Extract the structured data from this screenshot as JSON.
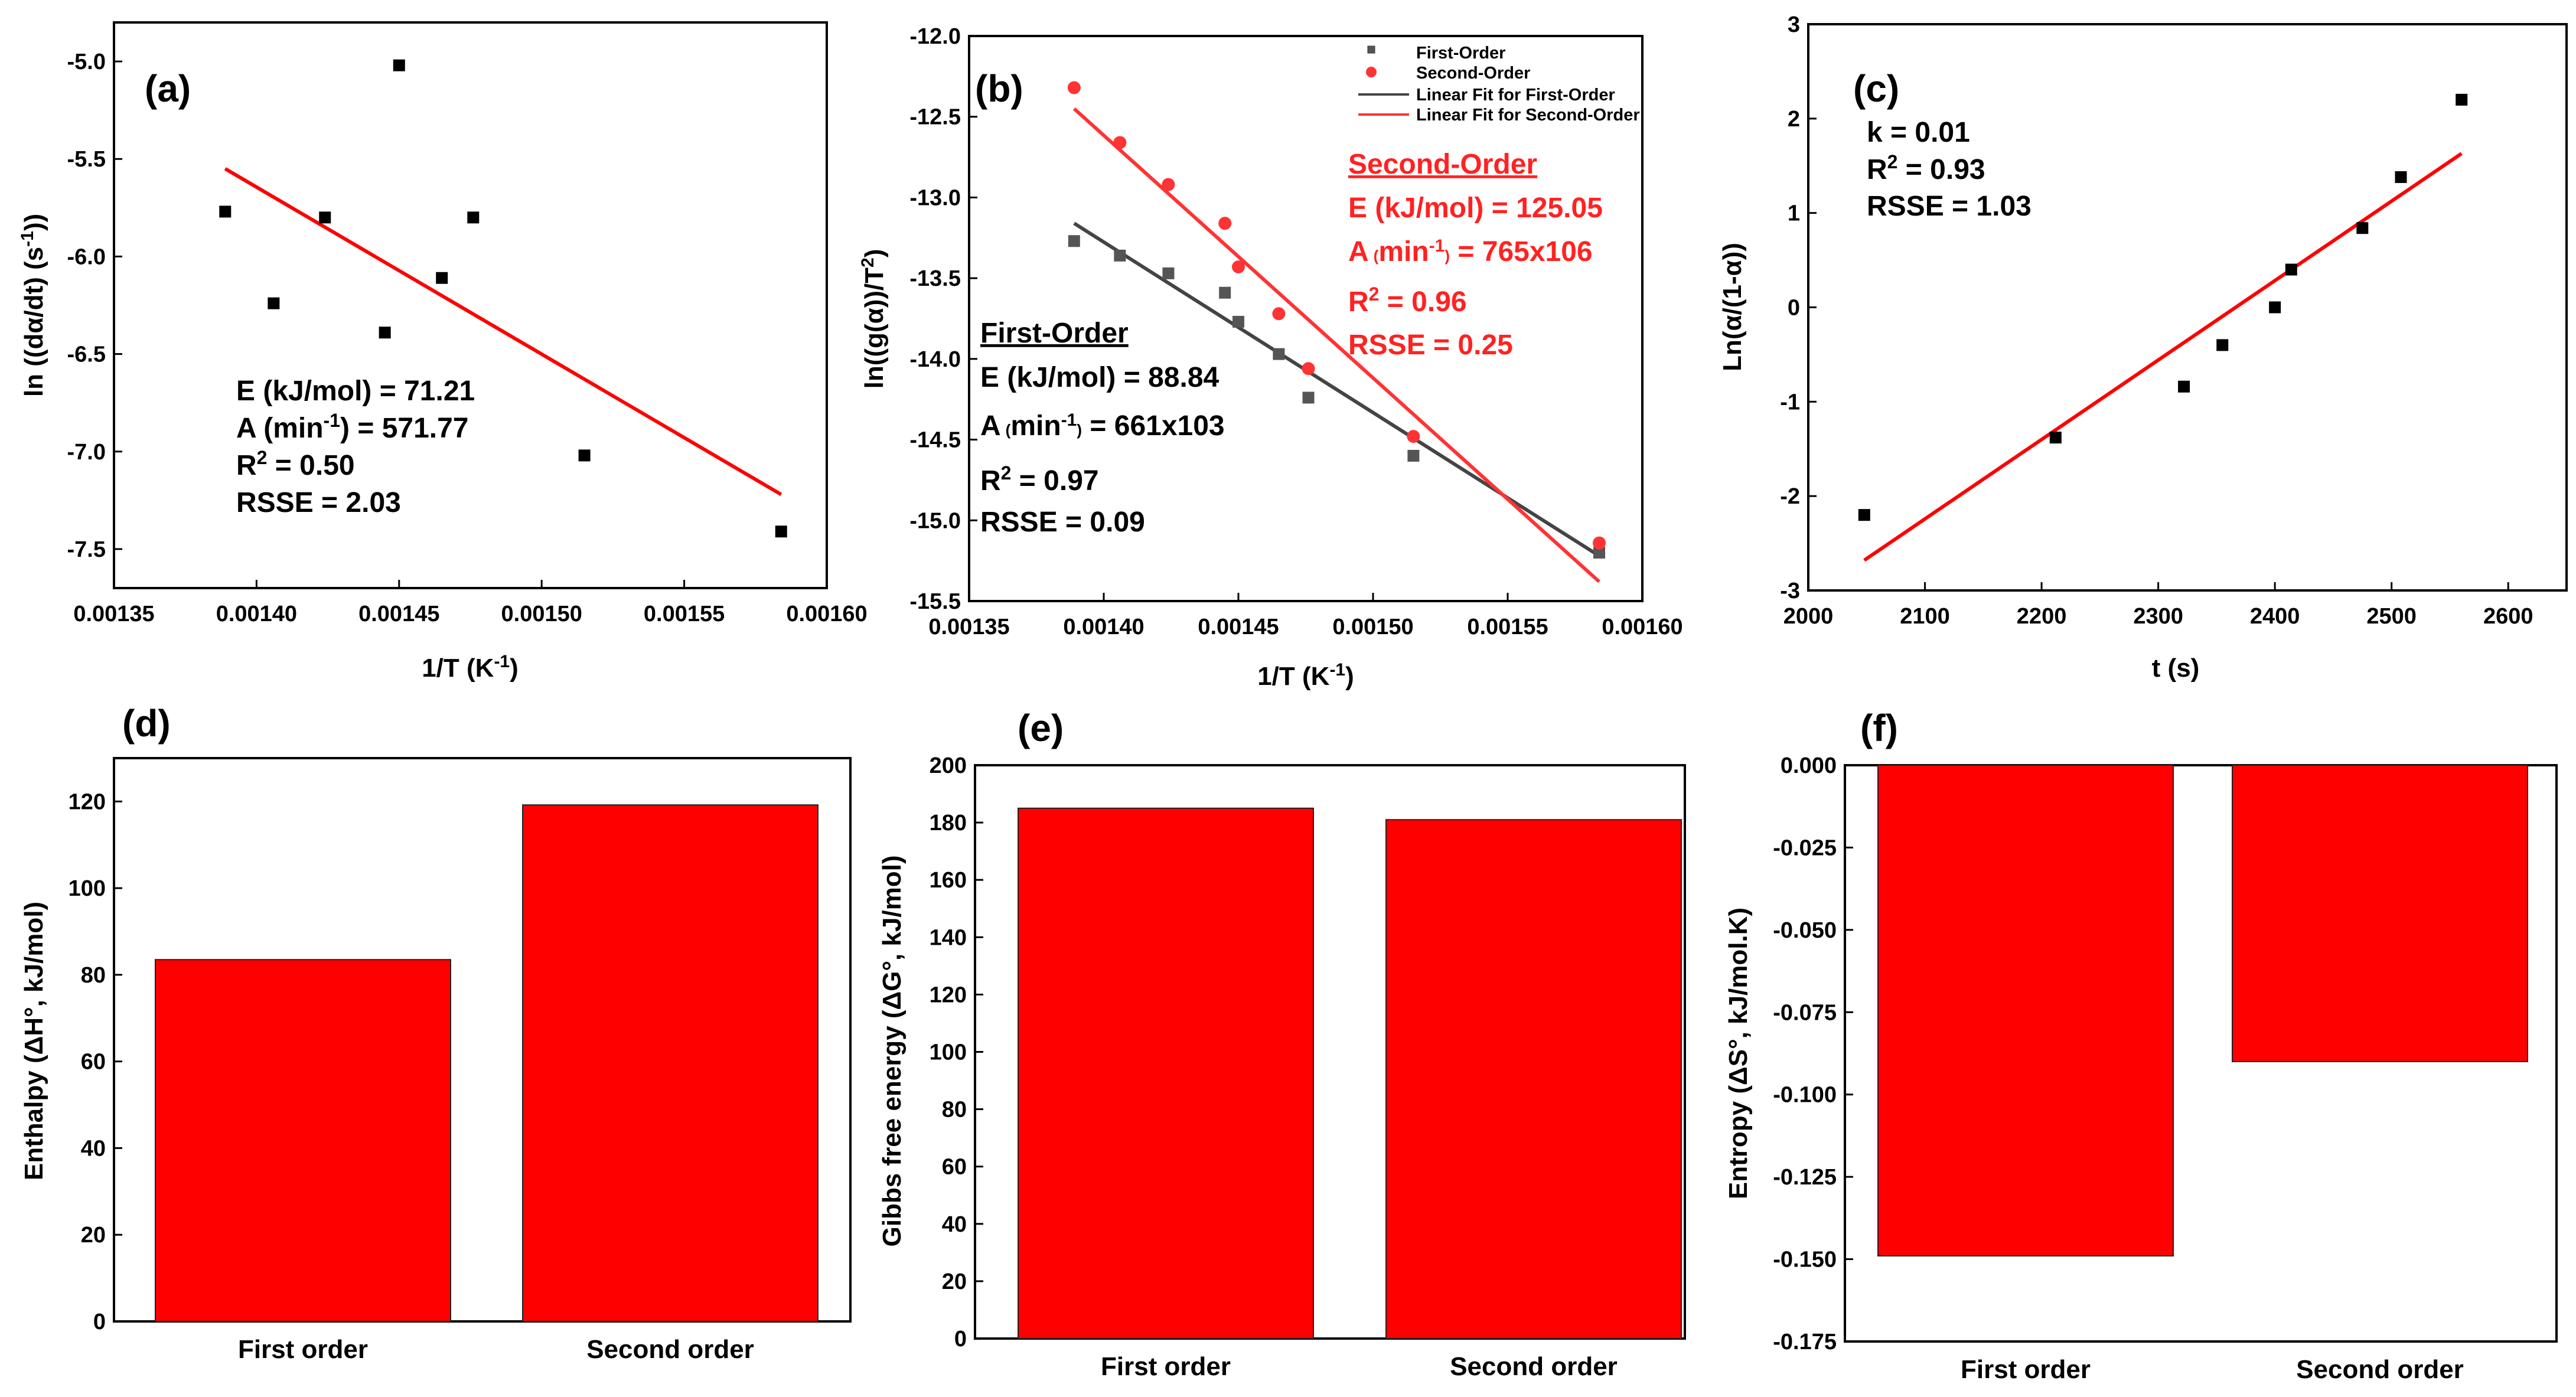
{
  "chart_data": [
    {
      "panel": "(a)",
      "type": "scatter",
      "xlabel": "1/T (K",
      "xlabel_sup": "-1",
      "xlabel_close": ")",
      "ylabel": "ln ((dα/dt) (s",
      "ylabel_sup": "-1",
      "ylabel_close": "))",
      "xlim": [
        0.00135,
        0.0016
      ],
      "ylim": [
        -7.7,
        -4.8
      ],
      "xticks": [
        0.00135,
        0.0014,
        0.00145,
        0.0015,
        0.00155,
        0.0016
      ],
      "xtick_labels": [
        "0.00135",
        "0.00140",
        "0.00145",
        "0.00150",
        "0.00155",
        "0.00160"
      ],
      "yticks": [
        -7.5,
        -7.0,
        -6.5,
        -6.0,
        -5.5,
        -5.0
      ],
      "ytick_labels": [
        "-7.5",
        "-7.0",
        "-6.5",
        "-6.0",
        "-5.5",
        "-5.0"
      ],
      "series": [
        {
          "name": "data",
          "color": "#000000",
          "marker": "square",
          "x": [
            0.001389,
            0.001406,
            0.001424,
            0.001445,
            0.00145,
            0.001465,
            0.001476,
            0.001515,
            0.001584
          ],
          "y": [
            -5.77,
            -6.24,
            -5.8,
            -6.39,
            -5.02,
            -6.11,
            -5.8,
            -7.02,
            -7.41
          ]
        }
      ],
      "fit": {
        "color": "#ff0000",
        "x": [
          0.001389,
          0.001584
        ],
        "y": [
          -5.55,
          -7.22
        ]
      },
      "annotations": [
        {
          "id": "energy",
          "text": "E (kJ/mol) = 71.21"
        },
        {
          "id": "pre",
          "text": "A (min",
          "sup": "-1",
          "rest": ") = 571.77"
        },
        {
          "id": "r2",
          "text": "R",
          "sup": "2",
          "rest": " = 0.50"
        },
        {
          "id": "rsse",
          "text": "RSSE = 2.03"
        }
      ]
    },
    {
      "panel": "(b)",
      "type": "scatter",
      "xlabel": "1/T (K",
      "xlabel_sup": "-1",
      "xlabel_close": ")",
      "ylabel": "ln((g(α))/T",
      "ylabel_sup": "2",
      "ylabel_close": ")",
      "xlim": [
        0.00135,
        0.0016
      ],
      "ylim": [
        -15.5,
        -12.0
      ],
      "xticks": [
        0.00135,
        0.0014,
        0.00145,
        0.0015,
        0.00155,
        0.0016
      ],
      "xtick_labels": [
        "0.00135",
        "0.00140",
        "0.00145",
        "0.00150",
        "0.00155",
        "0.00160"
      ],
      "yticks": [
        -15.5,
        -15.0,
        -14.5,
        -14.0,
        -13.5,
        -13.0,
        -12.5,
        -12.0
      ],
      "ytick_labels": [
        "-15.5",
        "-15.0",
        "-14.5",
        "-14.0",
        "-13.5",
        "-13.0",
        "-12.5",
        "-12.0"
      ],
      "series": [
        {
          "name": "First-Order",
          "color": "#555555",
          "marker": "square",
          "x": [
            0.001389,
            0.001406,
            0.001424,
            0.001445,
            0.00145,
            0.001465,
            0.001476,
            0.001515,
            0.001584
          ],
          "y": [
            -13.27,
            -13.36,
            -13.47,
            -13.59,
            -13.77,
            -13.97,
            -14.24,
            -14.6,
            -15.2
          ]
        },
        {
          "name": "Second-Order",
          "color": "#ff3333",
          "marker": "circle",
          "x": [
            0.001389,
            0.001406,
            0.001424,
            0.001445,
            0.00145,
            0.001465,
            0.001476,
            0.001515,
            0.001584
          ],
          "y": [
            -12.32,
            -12.66,
            -12.92,
            -13.16,
            -13.43,
            -13.72,
            -14.06,
            -14.48,
            -15.14
          ]
        }
      ],
      "fits": [
        {
          "name": "Linear Fit for First-Order",
          "color": "#444444",
          "x": [
            0.001389,
            0.001584
          ],
          "y": [
            -13.16,
            -15.22
          ]
        },
        {
          "name": "Linear Fit for Second-Order",
          "color": "#ff3333",
          "x": [
            0.001389,
            0.001584
          ],
          "y": [
            -12.45,
            -15.38
          ]
        }
      ],
      "legend": [
        {
          "label": "First-Order",
          "kind": "square",
          "color": "#555555"
        },
        {
          "label": "Second-Order",
          "kind": "circle",
          "color": "#ff3333"
        },
        {
          "label": "Linear Fit for First-Order",
          "kind": "line",
          "color": "#444444"
        },
        {
          "label": "Linear Fit for Second-Order",
          "kind": "line",
          "color": "#ff3333"
        }
      ],
      "first_order_box": {
        "heading": "First-Order",
        "energy": "E (kJ/mol) = 88.84",
        "pre_a": "A",
        "pre_unit": "(",
        "pre_unit_main": "min",
        "pre_unit_sup": "-1",
        "pre_unit_close": ")",
        "pre_value": " = 661x103",
        "r2": "R",
        "r2_sup": "2",
        "r2_value": " = 0.97",
        "rsse": "RSSE = 0.09"
      },
      "second_order_box": {
        "heading": "Second-Order",
        "energy": "E (kJ/mol) = 125.05",
        "pre_a": "A",
        "pre_unit": "(",
        "pre_unit_main": "min",
        "pre_unit_sup": "-1",
        "pre_unit_close": ")",
        "pre_value": " = 765x106",
        "r2": "R",
        "r2_sup": "2",
        "r2_value": " = 0.96",
        "rsse": "RSSE = 0.25"
      }
    },
    {
      "panel": "(c)",
      "type": "scatter",
      "xlabel": "t (s)",
      "ylabel": "Ln(α/(1-α))",
      "xlim": [
        2000,
        2650
      ],
      "ylim": [
        -3,
        3
      ],
      "xticks": [
        2000,
        2100,
        2200,
        2300,
        2400,
        2500,
        2600
      ],
      "xtick_labels": [
        "2000",
        "2100",
        "2200",
        "2300",
        "2400",
        "2500",
        "2600"
      ],
      "yticks": [
        -3,
        -2,
        -1,
        0,
        1,
        2,
        3
      ],
      "ytick_labels": [
        "-3",
        "-2",
        "-1",
        "0",
        "1",
        "2",
        "3"
      ],
      "series": [
        {
          "name": "data",
          "color": "#000000",
          "marker": "square",
          "x": [
            2048,
            2212,
            2322,
            2355,
            2400,
            2414,
            2475,
            2508,
            2560
          ],
          "y": [
            -2.2,
            -1.38,
            -0.84,
            -0.4,
            0.0,
            0.4,
            0.84,
            1.38,
            2.2
          ]
        }
      ],
      "fit": {
        "color": "#ff0000",
        "x": [
          2048,
          2560
        ],
        "y": [
          -2.68,
          1.63
        ]
      },
      "annotations": [
        {
          "id": "k",
          "text": "k = 0.01"
        },
        {
          "id": "r2",
          "text": "R",
          "sup": "2",
          "rest": " = 0.93"
        },
        {
          "id": "rsse",
          "text": "RSSE = 1.03"
        }
      ]
    },
    {
      "panel": "(d)",
      "type": "bar",
      "color": "#ff0000",
      "categories": [
        "First order",
        "Second order"
      ],
      "values": [
        83.5,
        119.2
      ],
      "ylabel": "Enthalpy (ΔH°, kJ/mol)",
      "ylim": [
        0,
        130
      ],
      "yticks": [
        0,
        20,
        40,
        60,
        80,
        100,
        120
      ],
      "ytick_labels": [
        "0",
        "20",
        "40",
        "60",
        "80",
        "100",
        "120"
      ]
    },
    {
      "panel": "(e)",
      "type": "bar",
      "color": "#ff0000",
      "categories": [
        "First order",
        "Second order"
      ],
      "values": [
        185,
        181
      ],
      "ylabel": "Gibbs free energy (ΔG°, kJ/mol)",
      "ylim": [
        0,
        200
      ],
      "yticks": [
        0,
        20,
        40,
        60,
        80,
        100,
        120,
        140,
        160,
        180,
        200
      ],
      "ytick_labels": [
        "0",
        "20",
        "40",
        "60",
        "80",
        "100",
        "120",
        "140",
        "160",
        "180",
        "200"
      ]
    },
    {
      "panel": "(f)",
      "type": "bar",
      "color": "#ff0000",
      "categories": [
        "First order",
        "Second order"
      ],
      "values": [
        -0.149,
        -0.09
      ],
      "ylabel": "Entropy (ΔS°, kJ/mol.K)",
      "ylim": [
        -0.175,
        0.0
      ],
      "yticks": [
        -0.175,
        -0.15,
        -0.125,
        -0.1,
        -0.075,
        -0.05,
        -0.025,
        0.0
      ],
      "ytick_labels": [
        "-0.175",
        "-0.150",
        "-0.125",
        "-0.100",
        "-0.075",
        "-0.050",
        "-0.025",
        "0.000"
      ]
    }
  ]
}
